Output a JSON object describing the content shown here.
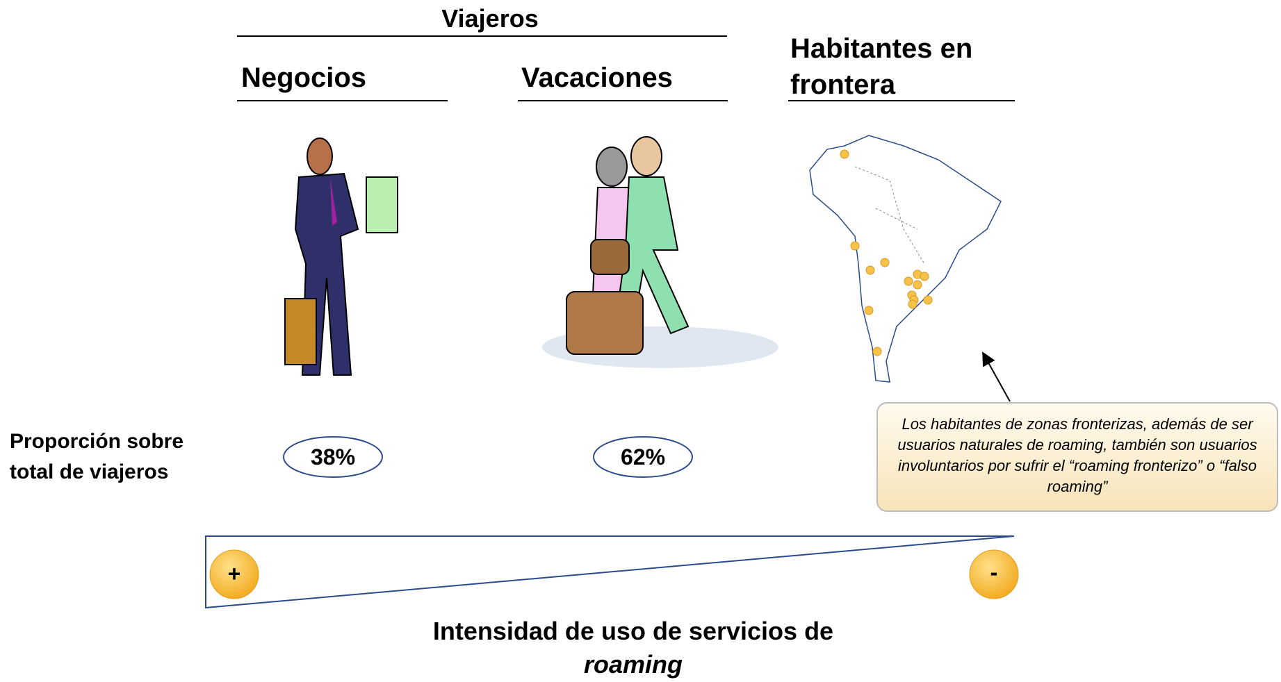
{
  "header": {
    "title": "Viajeros"
  },
  "columns": [
    {
      "label": "Negocios"
    },
    {
      "label": "Vacaciones"
    },
    {
      "label": "Habitantes en frontera"
    }
  ],
  "row_label": "Proporción sobre total de viajeros",
  "proportions": [
    "38%",
    "62%"
  ],
  "callout": "Los habitantes de zonas fronterizas, además de ser usuarios naturales de roaming, también son usuarios involuntarios por sufrir el “roaming fronterizo” o “falso roaming”",
  "scale": {
    "plus": "+",
    "minus": "-",
    "caption": "Intensidad de uso de servicios de",
    "caption_italic": "roaming"
  }
}
